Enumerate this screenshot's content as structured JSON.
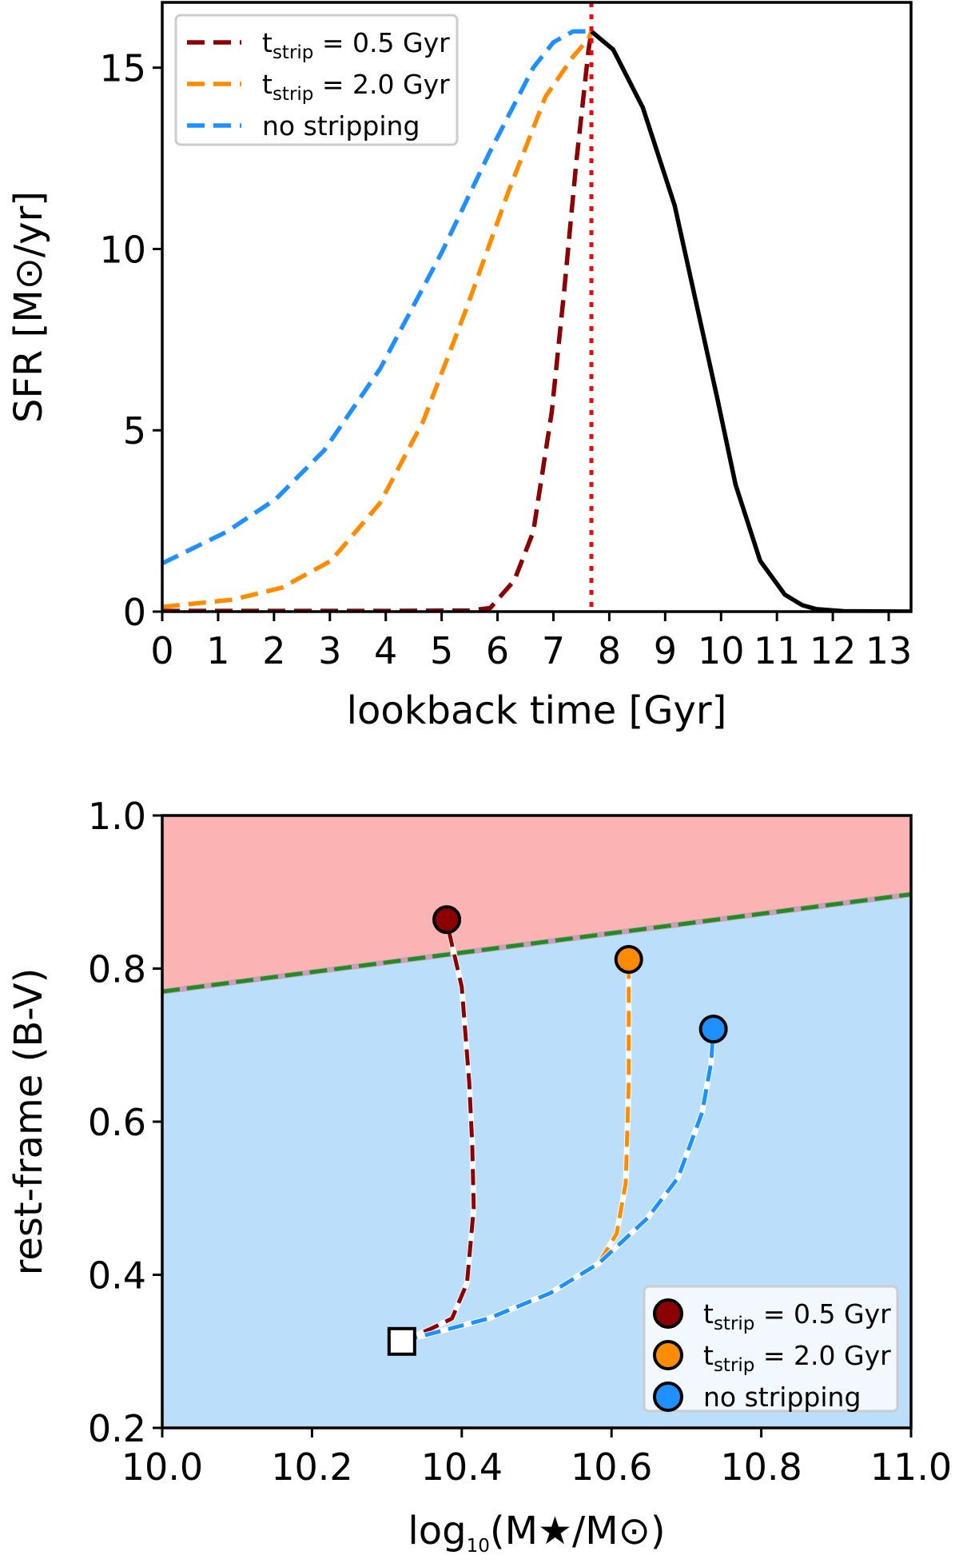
{
  "chart_data": [
    {
      "type": "line",
      "xlabel": "lookback time [Gyr]",
      "ylabel": "SFR [M⊙/yr]",
      "xlim": [
        0,
        13.4
      ],
      "ylim": [
        0,
        16.8
      ],
      "xticks": [
        "0",
        "1",
        "2",
        "3",
        "4",
        "5",
        "6",
        "7",
        "8",
        "9",
        "10",
        "11",
        "12",
        "13"
      ],
      "yticks": [
        "0",
        "5",
        "10",
        "15"
      ],
      "grid": false,
      "legend_position": "top-left",
      "vline": {
        "x": 7.68,
        "color": "#ff0000",
        "style": "dotted"
      },
      "series": [
        {
          "name": "t_strip = 0.5 Gyr",
          "legend": {
            "main": "t",
            "sub": "strip",
            "rest": " = 0.5 Gyr"
          },
          "color": "#8b0000",
          "style": "dashed",
          "x": [
            0,
            2,
            4,
            5.5,
            5.87,
            6.3,
            6.64,
            6.97,
            7.19,
            7.41,
            7.63,
            7.68
          ],
          "y": [
            0.02,
            0.02,
            0.02,
            0.03,
            0.1,
            0.86,
            2.2,
            5.5,
            8.8,
            12.4,
            15.5,
            16.0
          ]
        },
        {
          "name": "t_strip = 2.0 Gyr",
          "legend": {
            "main": "t",
            "sub": "strip",
            "rest": " = 2.0 Gyr"
          },
          "color": "#ff8c00",
          "style": "dashed",
          "x": [
            0,
            1.26,
            2.14,
            3.02,
            3.9,
            4.67,
            5.43,
            6.2,
            6.86,
            7.35,
            7.63,
            7.68
          ],
          "y": [
            0.13,
            0.33,
            0.66,
            1.4,
            3.0,
            5.25,
            8.3,
            11.6,
            14.2,
            15.3,
            15.8,
            16.0
          ]
        },
        {
          "name": "no stripping",
          "legend": {
            "main": "no stripping",
            "sub": "",
            "rest": ""
          },
          "color": "#1e90ff",
          "style": "dashed",
          "x": [
            0,
            1.15,
            2.03,
            2.9,
            3.9,
            5.0,
            5.87,
            6.64,
            7.0,
            7.35,
            7.63,
            7.68
          ],
          "y": [
            1.33,
            2.2,
            3.1,
            4.45,
            6.7,
            9.9,
            12.7,
            15.0,
            15.7,
            16.0,
            16.0,
            16.0
          ]
        },
        {
          "color": "#000000",
          "style": "solid",
          "x": [
            7.68,
            8.07,
            8.6,
            9.17,
            9.6,
            9.93,
            10.26,
            10.7,
            11.14,
            11.45,
            11.7,
            12.2,
            13.4
          ],
          "y": [
            16.0,
            15.5,
            13.9,
            11.2,
            8.2,
            5.9,
            3.5,
            1.4,
            0.47,
            0.18,
            0.07,
            0.01,
            0.0
          ]
        }
      ]
    },
    {
      "type": "line",
      "xlabel": {
        "pre": "log",
        "sub": "10",
        "post": "(M★/M⊙)"
      },
      "ylabel": "rest-frame (B-V)",
      "xlim": [
        10.0,
        11.0
      ],
      "ylim": [
        0.2,
        1.0
      ],
      "xticks": [
        "10.0",
        "10.2",
        "10.4",
        "10.6",
        "10.8",
        "11.0"
      ],
      "yticks": [
        "0.2",
        "0.4",
        "0.6",
        "0.8",
        "1.0"
      ],
      "grid": false,
      "legend_position": "bottom-right",
      "regions": {
        "upper_color": "#fcb3b3",
        "lower_color": "#bbdefb"
      },
      "divider": {
        "x": [
          10.0,
          11.0
        ],
        "y": [
          0.77,
          0.897
        ],
        "color": "#228b22",
        "style": "dashed"
      },
      "start_marker": {
        "x": 10.32,
        "y": 0.313,
        "shape": "square"
      },
      "series": [
        {
          "name": "t_strip = 0.5 Gyr",
          "legend": {
            "main": "t",
            "sub": "strip",
            "rest": " = 0.5 Gyr"
          },
          "color": "#8b0000",
          "x": [
            10.32,
            10.36,
            10.387,
            10.407,
            10.416,
            10.414,
            10.41,
            10.4,
            10.383,
            10.38
          ],
          "y": [
            0.313,
            0.33,
            0.343,
            0.389,
            0.487,
            0.57,
            0.651,
            0.776,
            0.848,
            0.864
          ]
        },
        {
          "name": "t_strip = 2.0 Gyr",
          "legend": {
            "main": "t",
            "sub": "strip",
            "rest": " = 2.0 Gyr"
          },
          "color": "#ff8c00",
          "x": [
            10.32,
            10.436,
            10.518,
            10.583,
            10.607,
            10.619,
            10.623,
            10.623,
            10.623
          ],
          "y": [
            0.313,
            0.343,
            0.376,
            0.415,
            0.454,
            0.52,
            0.651,
            0.75,
            0.812
          ]
        },
        {
          "name": "no stripping",
          "legend": {
            "main": "no stripping",
            "sub": "",
            "rest": ""
          },
          "color": "#1e90ff",
          "x": [
            10.32,
            10.436,
            10.518,
            10.583,
            10.648,
            10.689,
            10.721,
            10.733,
            10.736
          ],
          "y": [
            0.313,
            0.343,
            0.376,
            0.415,
            0.474,
            0.527,
            0.612,
            0.677,
            0.721
          ]
        }
      ]
    }
  ]
}
